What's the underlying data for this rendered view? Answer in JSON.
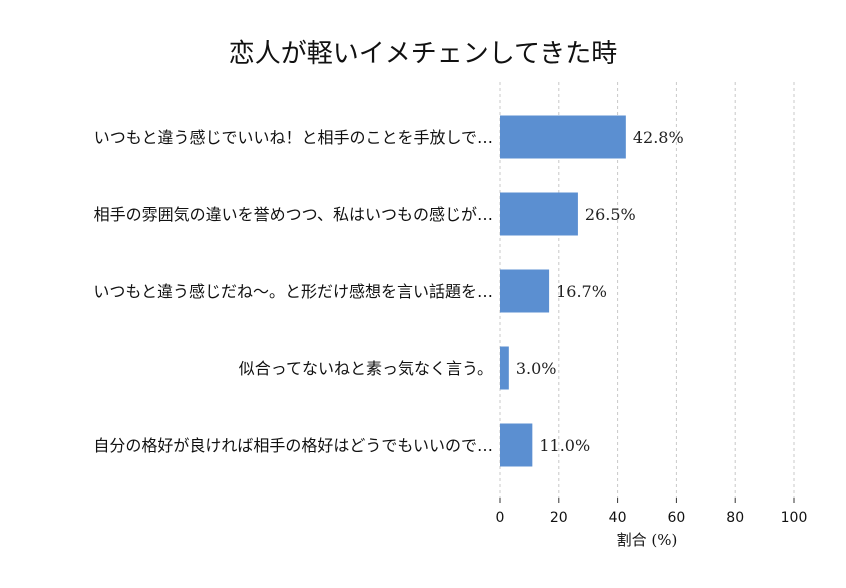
{
  "chart_data": {
    "type": "bar",
    "orientation": "horizontal",
    "title": "恋人が軽いイメチェンしてきた時",
    "xlabel": "割合 (%)",
    "ylabel": "",
    "xlim": [
      0,
      100
    ],
    "xticks": [
      "0",
      "20",
      "40",
      "60",
      "80",
      "100"
    ],
    "grid": "vertical dashed",
    "bar_color": "#5b8fd1",
    "categories": [
      "いつもと違う感じでいいね！と相手のことを手放しで…",
      "相手の雰囲気の違いを誉めつつ、私はいつもの感じが…",
      "いつもと違う感じだね〜。と形だけ感想を言い話題を…",
      "似合ってないねと素っ気なく言う。",
      "自分の格好が良ければ相手の格好はどうでもいいので…"
    ],
    "values": [
      42.8,
      26.5,
      16.7,
      3.0,
      11.0
    ],
    "value_labels": [
      "42.8%",
      "26.5%",
      "16.7%",
      "3.0%",
      "11.0%"
    ]
  }
}
